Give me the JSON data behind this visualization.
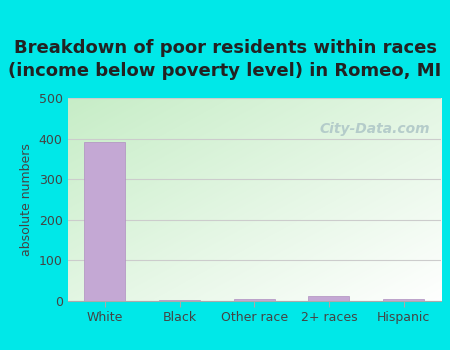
{
  "title": "Breakdown of poor residents within races\n(income below poverty level) in Romeo, MI",
  "categories": [
    "White",
    "Black",
    "Other race",
    "2+ races",
    "Hispanic"
  ],
  "values": [
    392,
    3,
    6,
    13,
    5
  ],
  "bar_color": "#c4a8d4",
  "bar_edge_color": "#b090c0",
  "ylabel": "absolute numbers",
  "ylim": [
    0,
    500
  ],
  "yticks": [
    0,
    100,
    200,
    300,
    400,
    500
  ],
  "background_color": "#00e8e8",
  "grid_color": "#cccccc",
  "title_fontsize": 13,
  "title_fontweight": "bold",
  "title_color": "#222222",
  "axis_label_fontsize": 9,
  "tick_fontsize": 9,
  "watermark_text": "City-Data.com",
  "watermark_color": "#b0c8c8",
  "watermark_fontsize": 10
}
